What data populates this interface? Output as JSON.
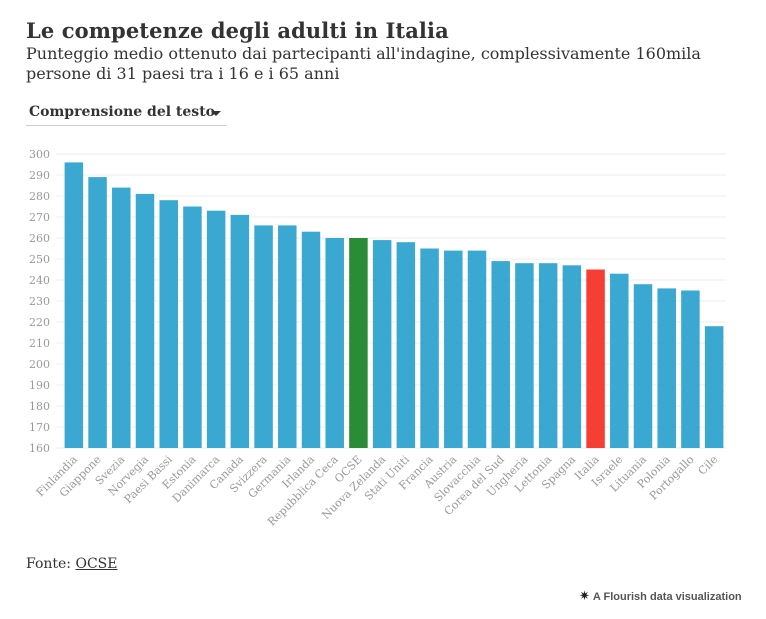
{
  "header": {
    "title": "Le competenze degli adulti in Italia",
    "subtitle": "Punteggio medio ottenuto dai partecipanti all'indagine, complessivamente 160mila persone di 31 paesi tra i 16 e i 65 anni"
  },
  "selector": {
    "selected": "Comprensione del testo"
  },
  "footer": {
    "source_prefix": "Fonte: ",
    "source_link": "OCSE",
    "credit": "A Flourish data visualization",
    "credit_icon": "flourish-star-icon"
  },
  "colors": {
    "default_bar": "#3aa8d0",
    "oecd_bar": "#2b8c37",
    "italy_bar": "#f53f35",
    "grid": "#eeeeee",
    "tick_text": "#999999"
  },
  "chart_data": {
    "type": "bar",
    "title": "Le competenze degli adulti in Italia",
    "subtitle": "Punteggio medio ottenuto dai partecipanti all'indagine, complessivamente 160mila persone di 31 paesi tra i 16 e i 65 anni",
    "xlabel": "",
    "ylabel": "",
    "ylim": [
      160,
      300
    ],
    "yticks": [
      160,
      170,
      180,
      190,
      200,
      210,
      220,
      230,
      240,
      250,
      260,
      270,
      280,
      290,
      300
    ],
    "grid": true,
    "categories": [
      "Finlandia",
      "Giappone",
      "Svezia",
      "Norvegia",
      "Paesi Bassi",
      "Estonia",
      "Danimarca",
      "Canada",
      "Svizzera",
      "Germania",
      "Irlanda",
      "Repubblica Ceca",
      "OCSE",
      "Nuova Zelanda",
      "Stati Uniti",
      "Francia",
      "Austria",
      "Slovacchia",
      "Corea del Sud",
      "Ungheria",
      "Lettonia",
      "Spagna",
      "Italia",
      "Israele",
      "Lituania",
      "Polonia",
      "Portogallo",
      "Cile"
    ],
    "values": [
      296,
      289,
      284,
      281,
      278,
      275,
      273,
      271,
      266,
      266,
      263,
      260,
      260,
      259,
      258,
      255,
      254,
      254,
      249,
      248,
      248,
      247,
      245,
      243,
      238,
      236,
      235,
      218
    ],
    "highlight": {
      "OCSE": "#2b8c37",
      "Italia": "#f53f35"
    }
  }
}
